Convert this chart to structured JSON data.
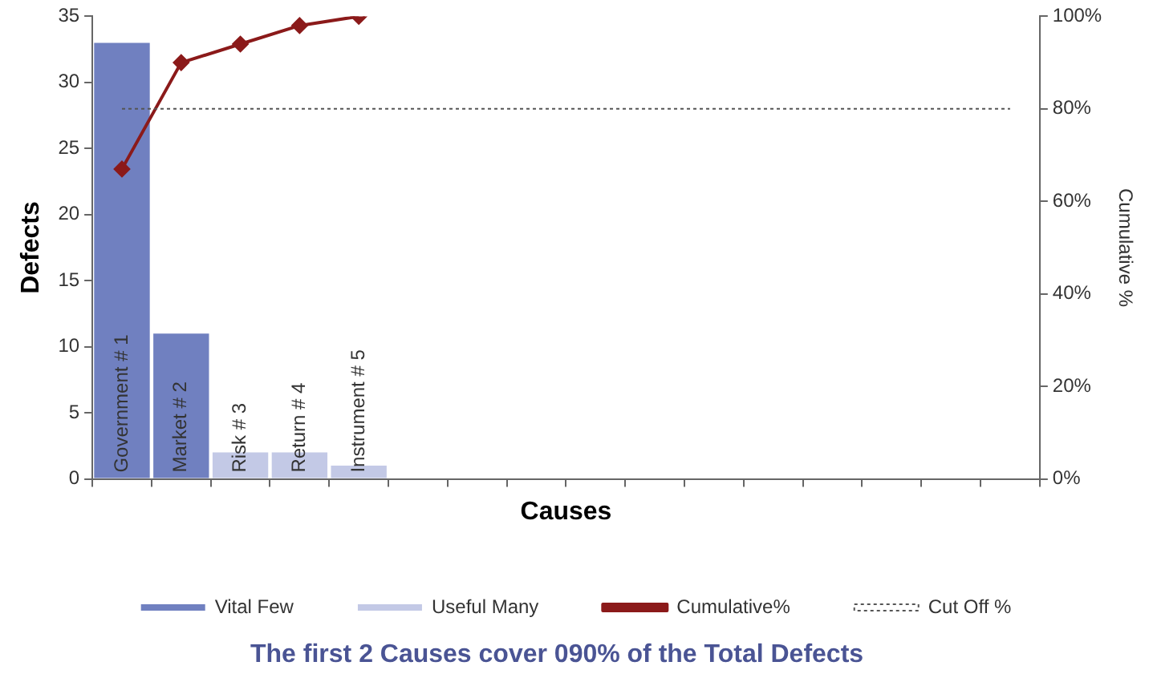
{
  "chart_data": {
    "type": "bar",
    "xlabel": "Causes",
    "ylabel": "Defects",
    "y2label": "Cumulative %",
    "categories": [
      "Government # 1",
      "Market # 2",
      "Risk # 3",
      "Return # 4",
      "Instrument # 5",
      null,
      null,
      null,
      null,
      null,
      null,
      null,
      null,
      null,
      null,
      null
    ],
    "series": [
      {
        "name": "Vital Few",
        "color": "#7080c0",
        "values": [
          33,
          11,
          null,
          null,
          null,
          null,
          null,
          null,
          null,
          null,
          null,
          null,
          null,
          null,
          null,
          null
        ]
      },
      {
        "name": "Useful Many",
        "color": "#c3c9e6",
        "values": [
          null,
          null,
          2,
          2,
          1,
          null,
          null,
          null,
          null,
          null,
          null,
          null,
          null,
          null,
          null,
          null
        ]
      },
      {
        "name": "Cumulative%",
        "type": "line",
        "axis": "y2",
        "color": "#8b1a1a",
        "marker": "diamond",
        "values": [
          67,
          90,
          94,
          98,
          100,
          null,
          null,
          null,
          null,
          null,
          null,
          null,
          null,
          null,
          null,
          null
        ]
      }
    ],
    "ref_lines": [
      {
        "axis": "y2",
        "value": 80,
        "label": "Cut Off %",
        "color": "#555555",
        "line_style": "dotted"
      }
    ],
    "ylim": [
      0,
      35
    ],
    "yticks": [
      0,
      5,
      10,
      15,
      20,
      25,
      30,
      35
    ],
    "y2lim": [
      0,
      100
    ],
    "y2ticks": [
      {
        "value": 0,
        "label": "0%"
      },
      {
        "value": 20,
        "label": "20%"
      },
      {
        "value": 40,
        "label": "40%"
      },
      {
        "value": 60,
        "label": "60%"
      },
      {
        "value": 80,
        "label": "80%"
      },
      {
        "value": 100,
        "label": "100%"
      }
    ],
    "grid": false,
    "legend": "bottom",
    "annotations": [
      "The first 2 Causes cover 090% of the Total Defects"
    ]
  }
}
